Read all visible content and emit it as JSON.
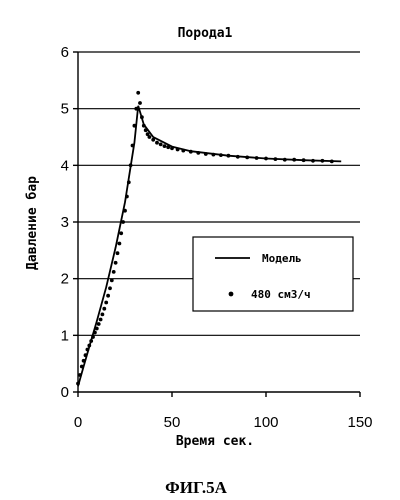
{
  "chart_data": {
    "type": "line",
    "title": "Порода1",
    "xlabel": "Время сек.",
    "ylabel": "Давление бар",
    "xlim": [
      0,
      150
    ],
    "ylim": [
      0,
      6
    ],
    "xticks": [
      0,
      50,
      100,
      150
    ],
    "yticks": [
      0,
      1,
      2,
      3,
      4,
      5,
      6
    ],
    "grid": "horizontal",
    "legend": "right-middle",
    "series": [
      {
        "name": "Модель",
        "kind": "line",
        "x": [
          0,
          3,
          6,
          10,
          15,
          20,
          25,
          30,
          32,
          35,
          40,
          50,
          60,
          80,
          100,
          120,
          140
        ],
        "y": [
          0.1,
          0.45,
          0.8,
          1.25,
          1.85,
          2.55,
          3.35,
          4.4,
          5.05,
          4.72,
          4.5,
          4.33,
          4.25,
          4.17,
          4.12,
          4.09,
          4.07
        ]
      },
      {
        "name": "480 см3/ч",
        "kind": "scatter",
        "x": [
          0,
          1,
          2,
          3,
          4,
          5,
          6,
          7,
          8,
          9,
          10,
          11,
          12,
          13,
          14,
          15,
          16,
          17,
          18,
          19,
          20,
          21,
          22,
          23,
          24,
          25,
          26,
          27,
          28,
          29,
          30,
          31,
          32,
          33,
          34,
          35,
          36,
          37,
          38,
          40,
          42,
          44,
          46,
          48,
          50,
          53,
          56,
          60,
          64,
          68,
          72,
          76,
          80,
          85,
          90,
          95,
          100,
          105,
          110,
          115,
          120,
          125,
          130,
          135
        ],
        "y": [
          0.15,
          0.3,
          0.45,
          0.55,
          0.65,
          0.75,
          0.82,
          0.9,
          0.97,
          1.05,
          1.12,
          1.2,
          1.28,
          1.37,
          1.47,
          1.58,
          1.7,
          1.83,
          1.97,
          2.12,
          2.28,
          2.45,
          2.62,
          2.8,
          3.0,
          3.2,
          3.45,
          3.7,
          4.0,
          4.35,
          4.7,
          5.0,
          5.28,
          5.1,
          4.85,
          4.7,
          4.62,
          4.55,
          4.5,
          4.45,
          4.4,
          4.37,
          4.34,
          4.32,
          4.3,
          4.28,
          4.26,
          4.24,
          4.22,
          4.2,
          4.19,
          4.18,
          4.17,
          4.15,
          4.14,
          4.13,
          4.12,
          4.11,
          4.1,
          4.1,
          4.09,
          4.08,
          4.08,
          4.07
        ]
      }
    ]
  },
  "caption": "ФИГ.5А"
}
